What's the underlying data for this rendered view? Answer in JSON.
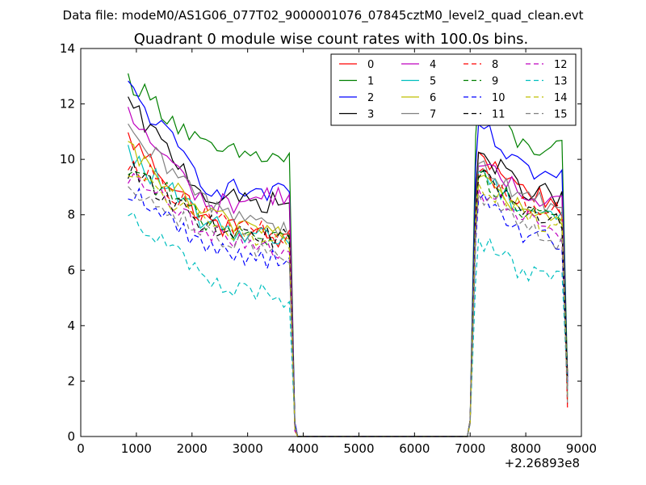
{
  "chart_data": {
    "type": "line",
    "suptitle": "Data file: modeM0/AS1G06_077T02_9000001076_07845cztM0_level2_quad_clean.evt",
    "title": "Quadrant 0 module wise count rates with 100.0s bins.",
    "xlabel": "",
    "ylabel": "",
    "x_offset_label": "+2.26893e8",
    "xlim": [
      0,
      9000
    ],
    "ylim": [
      0,
      14
    ],
    "xticks": [
      0,
      1000,
      2000,
      3000,
      4000,
      5000,
      6000,
      7000,
      8000,
      9000
    ],
    "yticks": [
      0,
      2,
      4,
      6,
      8,
      10,
      12,
      14
    ],
    "grid": false,
    "legend_position": "top-right",
    "legend_columns": 4,
    "segments": [
      {
        "start": 850,
        "end": 3750,
        "step": 100
      },
      {
        "start": 7150,
        "end": 8650,
        "step": 100
      }
    ],
    "drop_points": [
      [
        3850,
        0.2
      ],
      [
        3900,
        0.0
      ],
      [
        6950,
        0.0
      ],
      [
        7000,
        0.3
      ],
      [
        8750,
        1.0
      ]
    ],
    "series": [
      {
        "name": "0",
        "color": "#ff0000",
        "dash": "solid",
        "seg1": [
          10.8,
          7.7,
          7.0
        ],
        "seg2": [
          10.3,
          9.0,
          8.3
        ]
      },
      {
        "name": "1",
        "color": "#008000",
        "dash": "solid",
        "seg1": [
          12.9,
          10.3,
          10.0
        ],
        "seg2": [
          12.4,
          10.5,
          10.3
        ]
      },
      {
        "name": "2",
        "color": "#0000ff",
        "dash": "solid",
        "seg1": [
          12.6,
          9.0,
          8.7
        ],
        "seg2": [
          11.3,
          9.6,
          9.3
        ]
      },
      {
        "name": "3",
        "color": "#000000",
        "dash": "solid",
        "seg1": [
          12.0,
          8.6,
          8.4
        ],
        "seg2": [
          10.3,
          9.0,
          8.6
        ]
      },
      {
        "name": "4",
        "color": "#bf00bf",
        "dash": "solid",
        "seg1": [
          11.6,
          8.3,
          8.8
        ],
        "seg2": [
          9.8,
          8.8,
          8.5
        ]
      },
      {
        "name": "5",
        "color": "#00bfbf",
        "dash": "solid",
        "seg1": [
          10.2,
          7.6,
          7.1
        ],
        "seg2": [
          9.6,
          8.3,
          8.0
        ]
      },
      {
        "name": "6",
        "color": "#bfbf00",
        "dash": "solid",
        "seg1": [
          10.3,
          7.9,
          7.4
        ],
        "seg2": [
          9.4,
          8.2,
          7.6
        ]
      },
      {
        "name": "7",
        "color": "#808080",
        "dash": "solid",
        "seg1": [
          10.9,
          8.4,
          7.5
        ],
        "seg2": [
          9.9,
          8.6,
          8.3
        ]
      },
      {
        "name": "8",
        "color": "#ff0000",
        "dash": "dashed",
        "seg1": [
          10.0,
          7.9,
          7.1
        ],
        "seg2": [
          9.6,
          8.4,
          8.0
        ]
      },
      {
        "name": "9",
        "color": "#008000",
        "dash": "dashed",
        "seg1": [
          9.8,
          7.7,
          7.0
        ],
        "seg2": [
          9.5,
          8.3,
          7.9
        ]
      },
      {
        "name": "10",
        "color": "#0000ff",
        "dash": "dashed",
        "seg1": [
          8.9,
          6.8,
          6.3
        ],
        "seg2": [
          8.6,
          7.3,
          7.0
        ]
      },
      {
        "name": "11",
        "color": "#000000",
        "dash": "dashed",
        "seg1": [
          9.6,
          7.6,
          7.1
        ],
        "seg2": [
          9.4,
          8.2,
          7.8
        ]
      },
      {
        "name": "12",
        "color": "#bf00bf",
        "dash": "dashed",
        "seg1": [
          9.4,
          7.3,
          6.7
        ],
        "seg2": [
          9.0,
          7.9,
          7.4
        ]
      },
      {
        "name": "13",
        "color": "#00bfbf",
        "dash": "dashed",
        "seg1": [
          8.2,
          5.5,
          5.0
        ],
        "seg2": [
          7.2,
          6.0,
          5.6
        ]
      },
      {
        "name": "14",
        "color": "#bfbf00",
        "dash": "dashed",
        "seg1": [
          9.6,
          7.5,
          7.0
        ],
        "seg2": [
          9.2,
          8.0,
          7.6
        ]
      },
      {
        "name": "15",
        "color": "#808080",
        "dash": "dashed",
        "seg1": [
          9.2,
          7.2,
          6.6
        ],
        "seg2": [
          8.8,
          7.5,
          7.0
        ]
      }
    ]
  }
}
